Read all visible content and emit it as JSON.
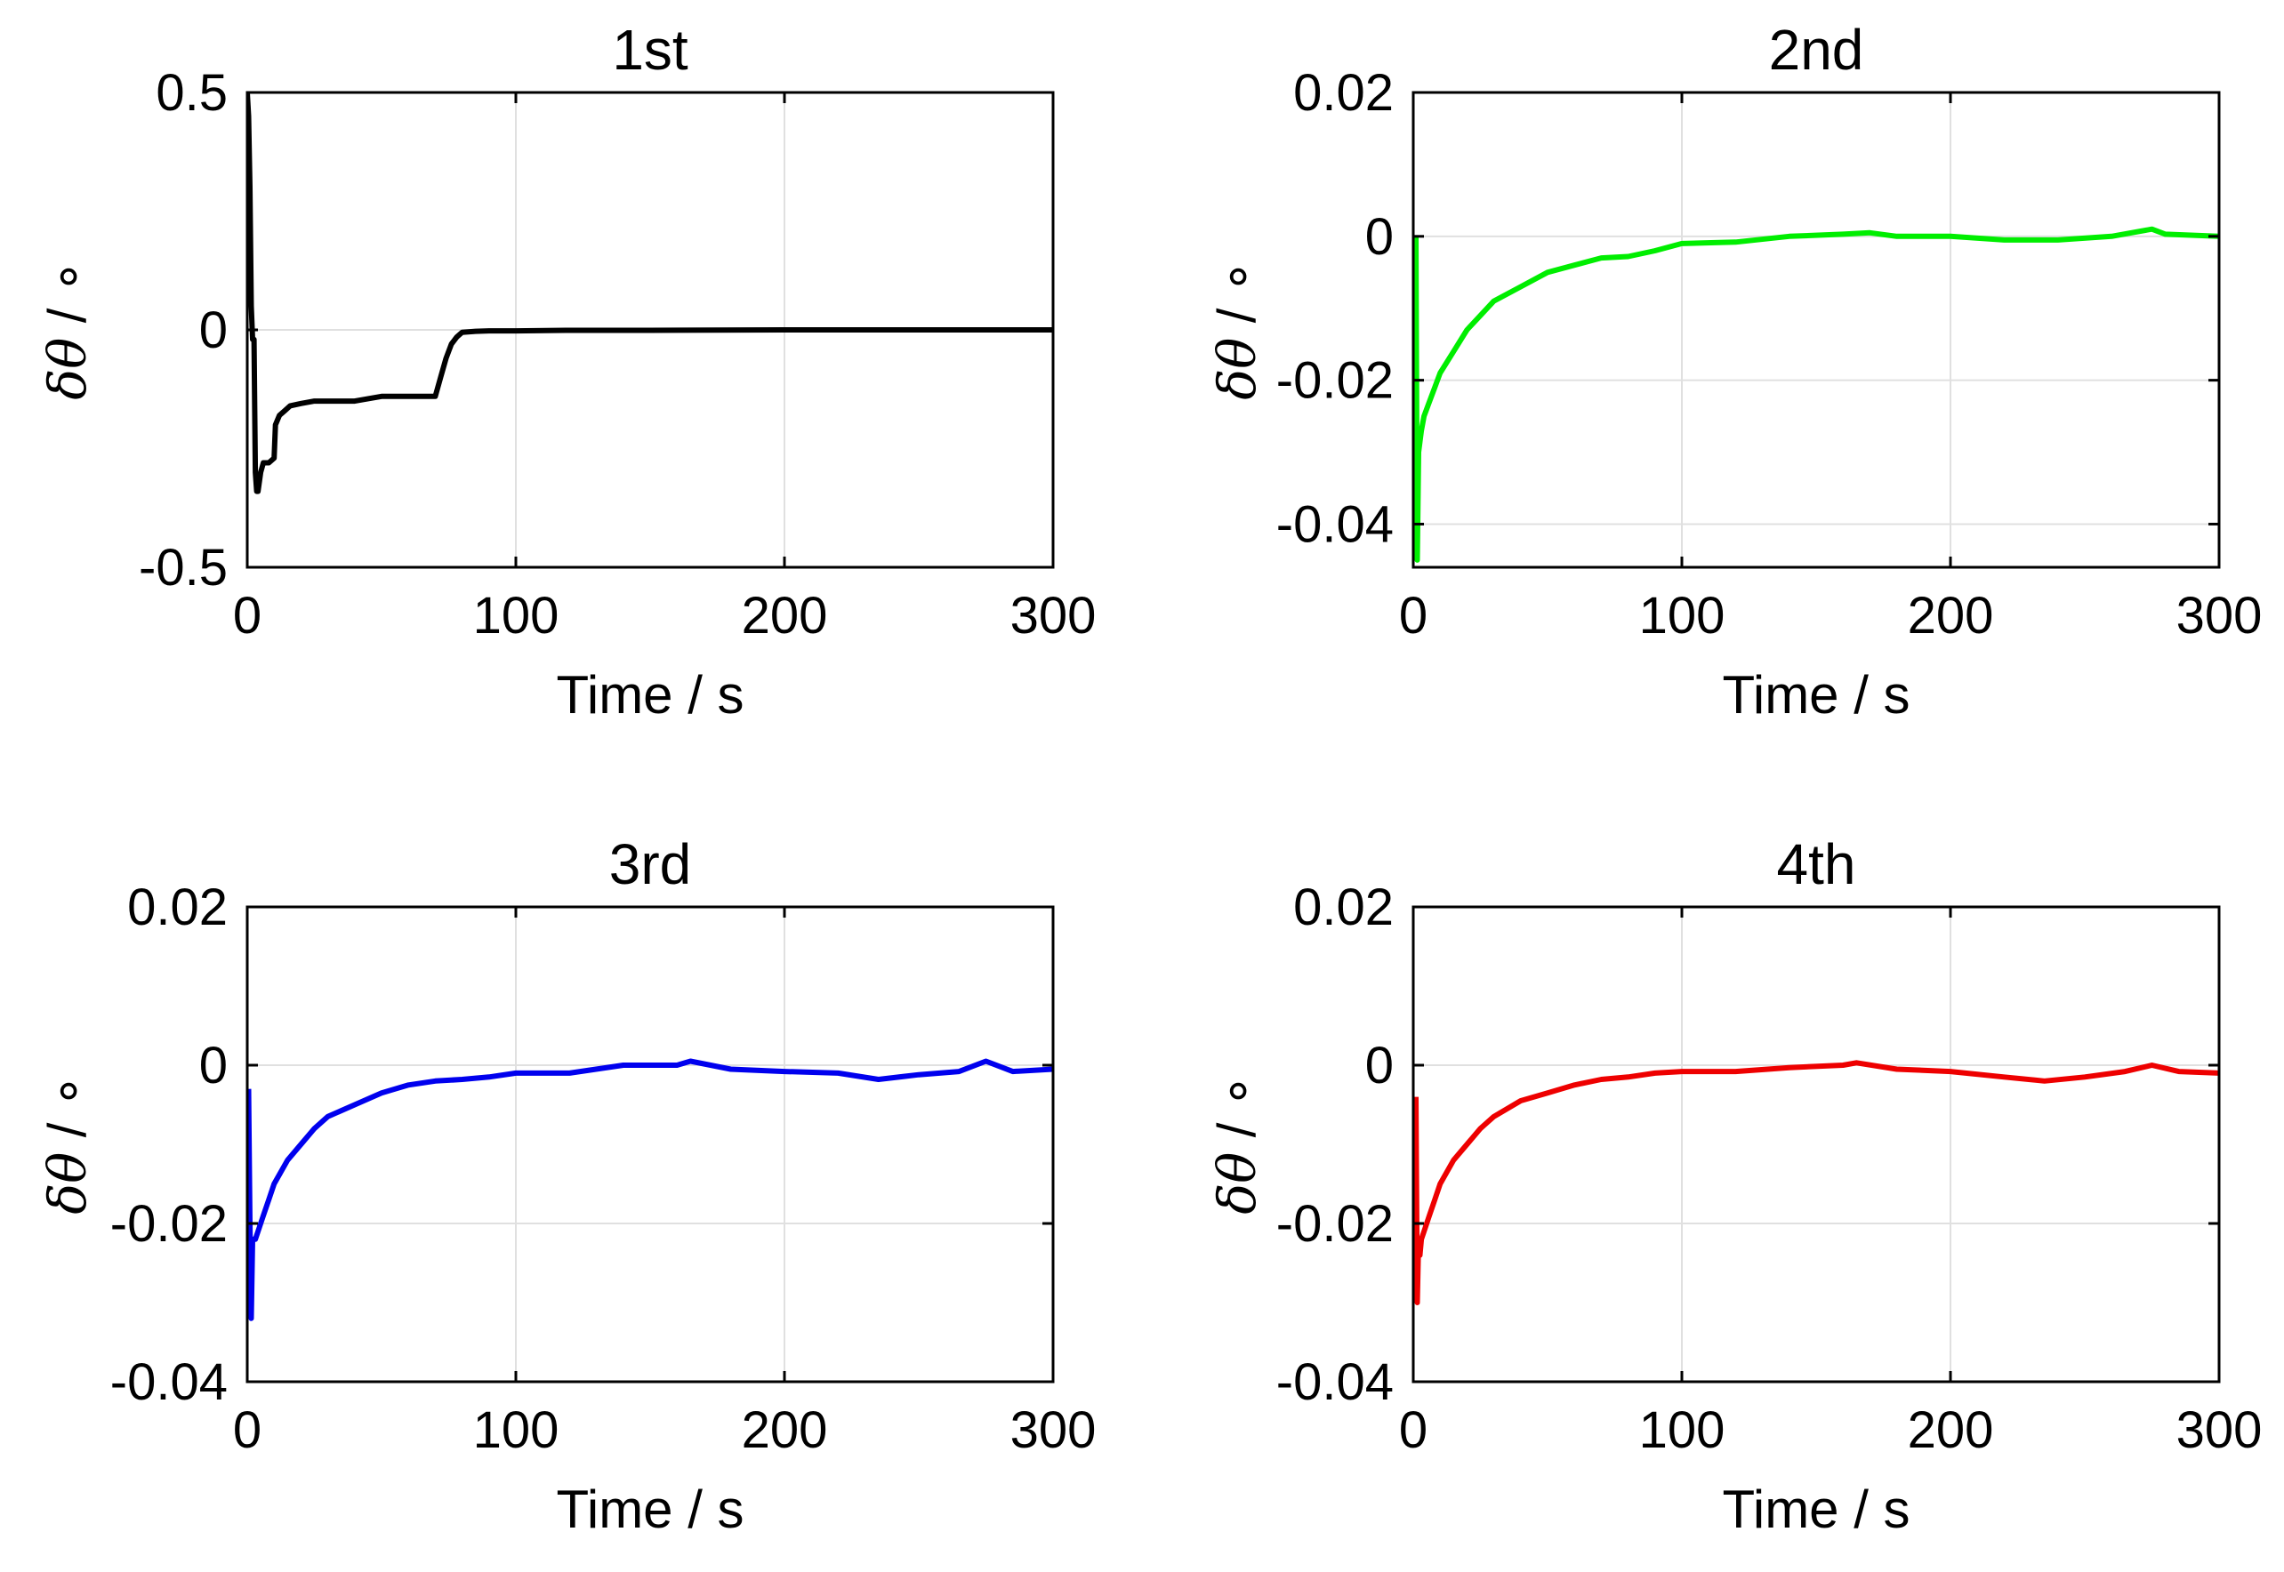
{
  "chart_data": [
    {
      "type": "line",
      "title": "1st",
      "xlabel": "Time / s",
      "ylabel_symbol": "δθ",
      "ylabel_unit": "∘",
      "xlim": [
        0,
        300
      ],
      "ylim": [
        -0.5,
        0.5
      ],
      "xticks": [
        0,
        100,
        200,
        300
      ],
      "xtick_labels": [
        "0",
        "100",
        "200",
        "300"
      ],
      "yticks": [
        -0.5,
        0,
        0.5
      ],
      "ytick_labels": [
        "-0.5",
        "0",
        "0.5"
      ],
      "grid": true,
      "color": "#000000",
      "series": [
        {
          "x": [
            0,
            0.5,
            1,
            1.5,
            2,
            2.5,
            3,
            3.5,
            4,
            5,
            6,
            8,
            10,
            10.5,
            12,
            14,
            16,
            20,
            25,
            30,
            35,
            40,
            45,
            50,
            55,
            60,
            65,
            70,
            72,
            74,
            76,
            78,
            80,
            85,
            90,
            100,
            120,
            150,
            200,
            250,
            300
          ],
          "y": [
            0.5,
            0.45,
            0.3,
            0.05,
            -0.02,
            -0.02,
            -0.3,
            -0.34,
            -0.34,
            -0.3,
            -0.28,
            -0.28,
            -0.27,
            -0.2,
            -0.18,
            -0.17,
            -0.16,
            -0.155,
            -0.15,
            -0.15,
            -0.15,
            -0.15,
            -0.145,
            -0.14,
            -0.14,
            -0.14,
            -0.14,
            -0.14,
            -0.1,
            -0.06,
            -0.03,
            -0.015,
            -0.005,
            -0.003,
            -0.002,
            -0.002,
            -0.001,
            -0.001,
            0.0,
            0.0,
            0.0
          ]
        }
      ]
    },
    {
      "type": "line",
      "title": "2nd",
      "xlabel": "Time / s",
      "ylabel_symbol": "δθ",
      "ylabel_unit": "∘",
      "xlim": [
        0,
        300
      ],
      "ylim": [
        -0.046,
        0.02
      ],
      "xticks": [
        0,
        100,
        200,
        300
      ],
      "xtick_labels": [
        "0",
        "100",
        "200",
        "300"
      ],
      "yticks": [
        -0.04,
        -0.02,
        0,
        0.02
      ],
      "ytick_labels": [
        "-0.04",
        "-0.02",
        "0",
        "0.02"
      ],
      "grid": true,
      "color": "#00ee00",
      "series": [
        {
          "x": [
            1,
            1.5,
            2,
            3,
            4,
            6,
            8,
            10,
            15,
            20,
            25,
            30,
            40,
            50,
            60,
            70,
            80,
            90,
            100,
            120,
            140,
            160,
            170,
            180,
            200,
            220,
            240,
            260,
            275,
            280,
            300
          ],
          "y": [
            0.0,
            -0.045,
            -0.03,
            -0.027,
            -0.025,
            -0.023,
            -0.021,
            -0.019,
            -0.016,
            -0.013,
            -0.011,
            -0.009,
            -0.007,
            -0.005,
            -0.004,
            -0.003,
            -0.0028,
            -0.002,
            -0.001,
            -0.0008,
            0.0,
            0.0003,
            0.0005,
            0.0,
            0.0,
            -0.0005,
            -0.0005,
            0.0,
            0.001,
            0.0003,
            0.0
          ]
        }
      ]
    },
    {
      "type": "line",
      "title": "3rd",
      "xlabel": "Time / s",
      "ylabel_symbol": "δθ",
      "ylabel_unit": "∘",
      "xlim": [
        0,
        300
      ],
      "ylim": [
        -0.04,
        0.02
      ],
      "xticks": [
        0,
        100,
        200,
        300
      ],
      "xtick_labels": [
        "0",
        "100",
        "200",
        "300"
      ],
      "yticks": [
        -0.04,
        -0.02,
        0,
        0.02
      ],
      "ytick_labels": [
        "-0.04",
        "-0.02",
        "0",
        "0.02"
      ],
      "grid": true,
      "color": "#0000ee",
      "series": [
        {
          "x": [
            0.5,
            1,
            1.5,
            2,
            3,
            4,
            6,
            8,
            10,
            15,
            20,
            25,
            30,
            40,
            50,
            60,
            70,
            80,
            90,
            100,
            120,
            140,
            160,
            165,
            180,
            200,
            220,
            235,
            250,
            265,
            275,
            285,
            300
          ],
          "y": [
            -0.003,
            -0.02,
            -0.032,
            -0.022,
            -0.022,
            -0.021,
            -0.019,
            -0.017,
            -0.015,
            -0.012,
            -0.01,
            -0.008,
            -0.0065,
            -0.005,
            -0.0035,
            -0.0025,
            -0.002,
            -0.0018,
            -0.0015,
            -0.001,
            -0.001,
            0.0,
            0.0,
            0.0005,
            -0.0005,
            -0.0008,
            -0.001,
            -0.0018,
            -0.0012,
            -0.0008,
            0.0005,
            -0.0008,
            -0.0005
          ]
        }
      ]
    },
    {
      "type": "line",
      "title": "4th",
      "xlabel": "Time / s",
      "ylabel_symbol": "δθ",
      "ylabel_unit": "∘",
      "xlim": [
        0,
        300
      ],
      "ylim": [
        -0.04,
        0.02
      ],
      "xticks": [
        0,
        100,
        200,
        300
      ],
      "xtick_labels": [
        "0",
        "100",
        "200",
        "300"
      ],
      "yticks": [
        -0.04,
        -0.02,
        0,
        0.02
      ],
      "ytick_labels": [
        "-0.04",
        "-0.02",
        "0",
        "0.02"
      ],
      "grid": true,
      "color": "#ee0000",
      "series": [
        {
          "x": [
            1,
            1.5,
            2,
            2.5,
            3,
            4,
            6,
            8,
            10,
            15,
            20,
            25,
            30,
            40,
            50,
            60,
            70,
            80,
            90,
            100,
            120,
            140,
            160,
            165,
            180,
            200,
            220,
            235,
            250,
            265,
            275,
            285,
            300
          ],
          "y": [
            -0.004,
            -0.03,
            -0.022,
            -0.024,
            -0.022,
            -0.021,
            -0.019,
            -0.017,
            -0.015,
            -0.012,
            -0.01,
            -0.008,
            -0.0065,
            -0.0045,
            -0.0035,
            -0.0025,
            -0.0018,
            -0.0015,
            -0.001,
            -0.0008,
            -0.0008,
            -0.0003,
            0.0,
            0.0003,
            -0.0005,
            -0.0008,
            -0.0015,
            -0.002,
            -0.0015,
            -0.0008,
            0.0,
            -0.0008,
            -0.001
          ]
        }
      ]
    }
  ]
}
